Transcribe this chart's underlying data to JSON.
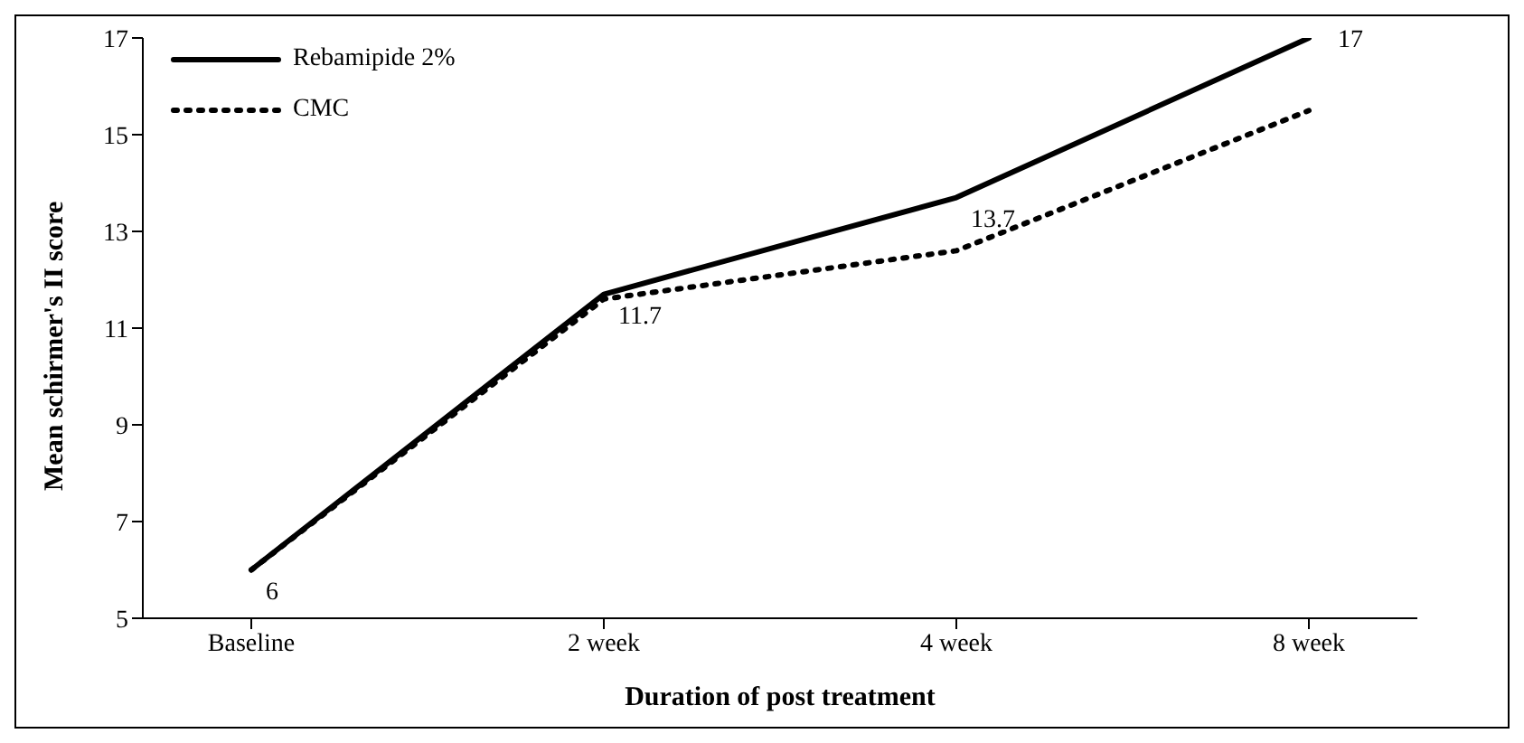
{
  "chart_data": {
    "type": "line",
    "xlabel": "Duration of post treatment",
    "ylabel": "Mean schirmer's II score",
    "categories": [
      "Baseline",
      "2 week",
      "4 week",
      "8 week"
    ],
    "series": [
      {
        "name": "Rebamipide 2%",
        "color": "#000000",
        "values": [
          6,
          11.7,
          13.7,
          17
        ],
        "value_labels": [
          "6",
          "11.7",
          "13.7",
          "17"
        ],
        "line_style": "solid"
      },
      {
        "name": "CMC",
        "color": "#000000",
        "values": [
          6,
          11.6,
          12.6,
          15.5
        ],
        "line_style": "dotted"
      }
    ],
    "ylim": [
      5,
      17
    ],
    "yticks": [
      5,
      7,
      9,
      11,
      13,
      15,
      17
    ],
    "legend": "top left",
    "marker": "none"
  }
}
